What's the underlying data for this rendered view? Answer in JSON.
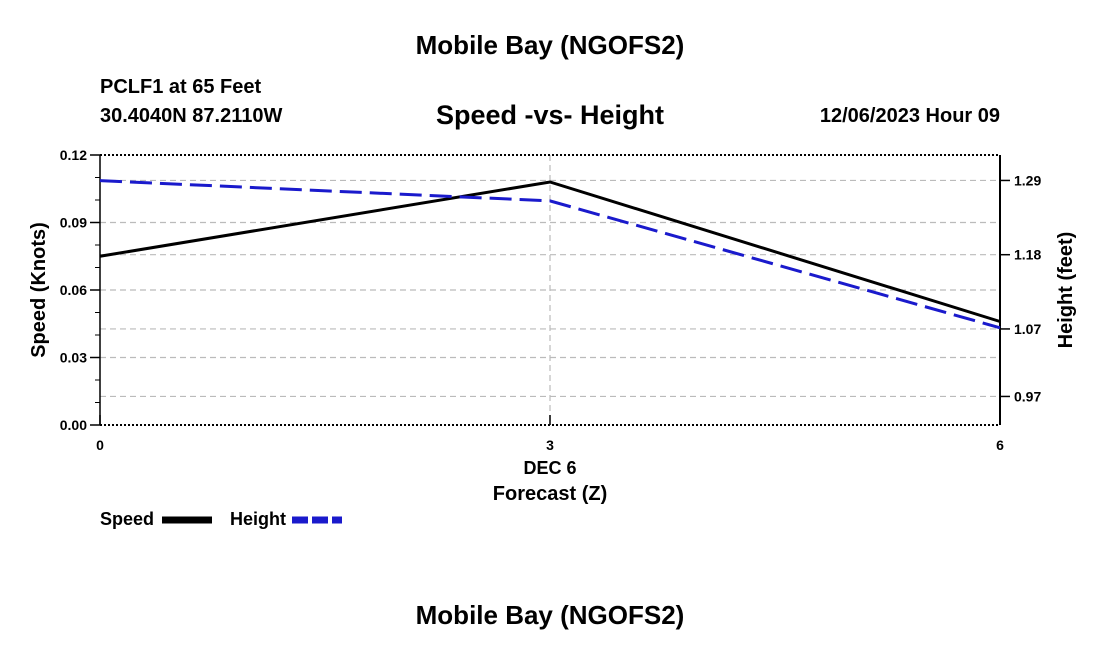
{
  "header": {
    "title": "Mobile Bay (NGOFS2)",
    "station": "PCLF1 at 65 Feet",
    "coords": "30.4040N  87.2110W",
    "chart_title": "Speed -vs- Height",
    "date": "12/06/2023 Hour 09"
  },
  "footer": {
    "title": "Mobile Bay (NGOFS2)"
  },
  "legend": {
    "speed_label": "Speed",
    "height_label": "Height"
  },
  "colors": {
    "speed": "#000000",
    "height": "#1a1acc",
    "grid": "#bbbbbb"
  },
  "chart_data": {
    "type": "line",
    "title": "Speed -vs- Height",
    "xlabel": "Forecast (Z)",
    "xsublabel": "DEC 6",
    "ylabel": "Speed (Knots)",
    "y2label": "Height (feet)",
    "x": [
      0,
      3,
      6
    ],
    "xlim": [
      0,
      6
    ],
    "xticks": [
      0,
      3,
      6
    ],
    "xtick_labels": [
      "0",
      "3",
      "6"
    ],
    "ylim": [
      0,
      0.12
    ],
    "yticks": [
      0,
      0.03,
      0.06,
      0.09,
      0.12
    ],
    "ytick_labels": [
      "0.00",
      "0.03",
      "0.06",
      "0.09",
      "0.12"
    ],
    "y2lim": [
      0.9277,
      1.3277
    ],
    "y2ticks": [
      0.97,
      1.07,
      1.18,
      1.29
    ],
    "y2tick_labels": [
      "0.97",
      "1.07",
      "1.18",
      "1.29"
    ],
    "grid": true,
    "series": [
      {
        "name": "Speed",
        "axis": "left",
        "style": "solid",
        "values": [
          0.075,
          0.108,
          0.046
        ]
      },
      {
        "name": "Height",
        "axis": "right",
        "style": "dashed",
        "values": [
          1.2897,
          1.2597,
          1.0717
        ]
      }
    ]
  }
}
